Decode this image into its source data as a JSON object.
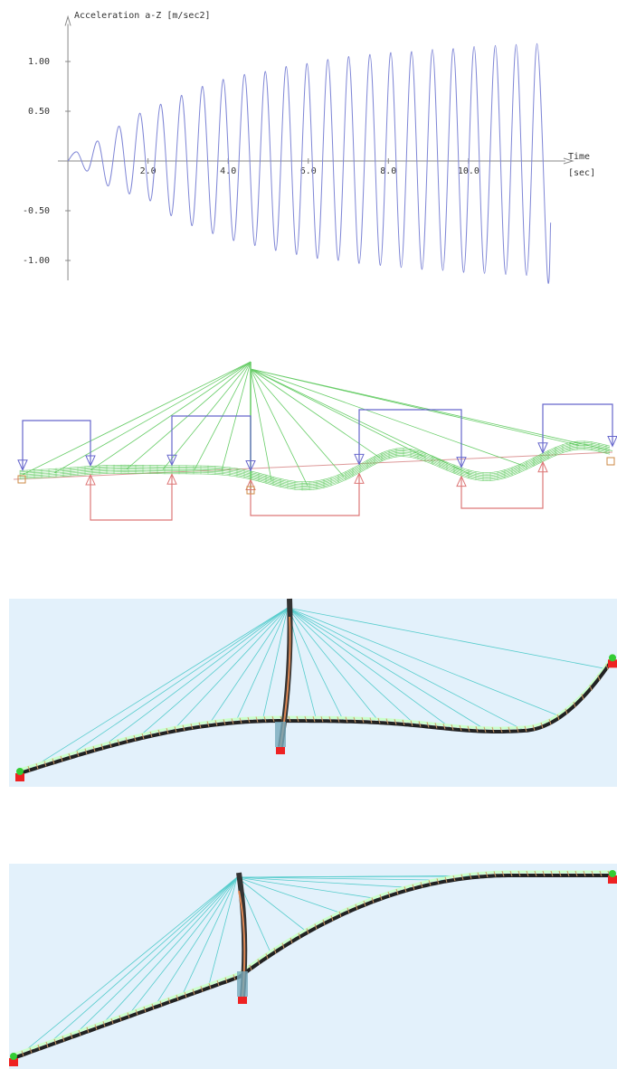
{
  "chart_data": {
    "type": "line",
    "y_label": "Acceleration a-Z [m/sec2]",
    "x_label": "Time",
    "x_unit": "[sec]",
    "x": [
      0,
      0.23,
      0.49,
      0.75,
      1.01,
      1.28,
      1.54,
      1.8,
      2.06,
      2.32,
      2.58,
      2.84,
      3.1,
      3.36,
      3.62,
      3.88,
      4.14,
      4.41,
      4.67,
      4.93,
      5.19,
      5.45,
      5.71,
      5.97,
      6.23,
      6.49,
      6.75,
      7.01,
      7.27,
      7.54,
      7.8,
      8.06,
      8.32,
      8.58,
      8.84,
      9.1,
      9.36,
      9.62,
      9.88,
      10.14,
      10.4,
      10.67,
      10.93,
      11.19,
      11.45,
      11.71,
      11.97,
      12.05
    ],
    "series": [
      {
        "color": "#7f86d6",
        "values": [
          0,
          0.09,
          -0.1,
          0.2,
          -0.25,
          0.35,
          -0.33,
          0.48,
          -0.4,
          0.57,
          -0.55,
          0.66,
          -0.65,
          0.75,
          -0.73,
          0.82,
          -0.8,
          0.87,
          -0.85,
          0.9,
          -0.9,
          0.95,
          -0.94,
          0.98,
          -0.98,
          1.02,
          -1.0,
          1.05,
          -1.03,
          1.07,
          -1.05,
          1.09,
          -1.07,
          1.1,
          -1.09,
          1.12,
          -1.1,
          1.13,
          -1.12,
          1.15,
          -1.13,
          1.16,
          -1.14,
          1.17,
          -1.15,
          1.18,
          -1.16,
          -0.62
        ]
      }
    ],
    "xlim": [
      -0.25,
      12.6
    ],
    "ylim": [
      -1.2,
      1.45
    ],
    "xticks": [
      {
        "value": 2,
        "label": "2.0"
      },
      {
        "value": 4,
        "label": "4.0"
      },
      {
        "value": 6,
        "label": "6.0"
      },
      {
        "value": 8,
        "label": "8.0"
      },
      {
        "value": 10,
        "label": "10.0"
      }
    ],
    "yticks": [
      {
        "value": -1,
        "label": "-1.00"
      },
      {
        "value": -0.5,
        "label": "-0.50"
      },
      {
        "value": 0.5,
        "label": "0.50"
      },
      {
        "value": 1,
        "label": "1.00"
      }
    ],
    "grid": false
  }
}
